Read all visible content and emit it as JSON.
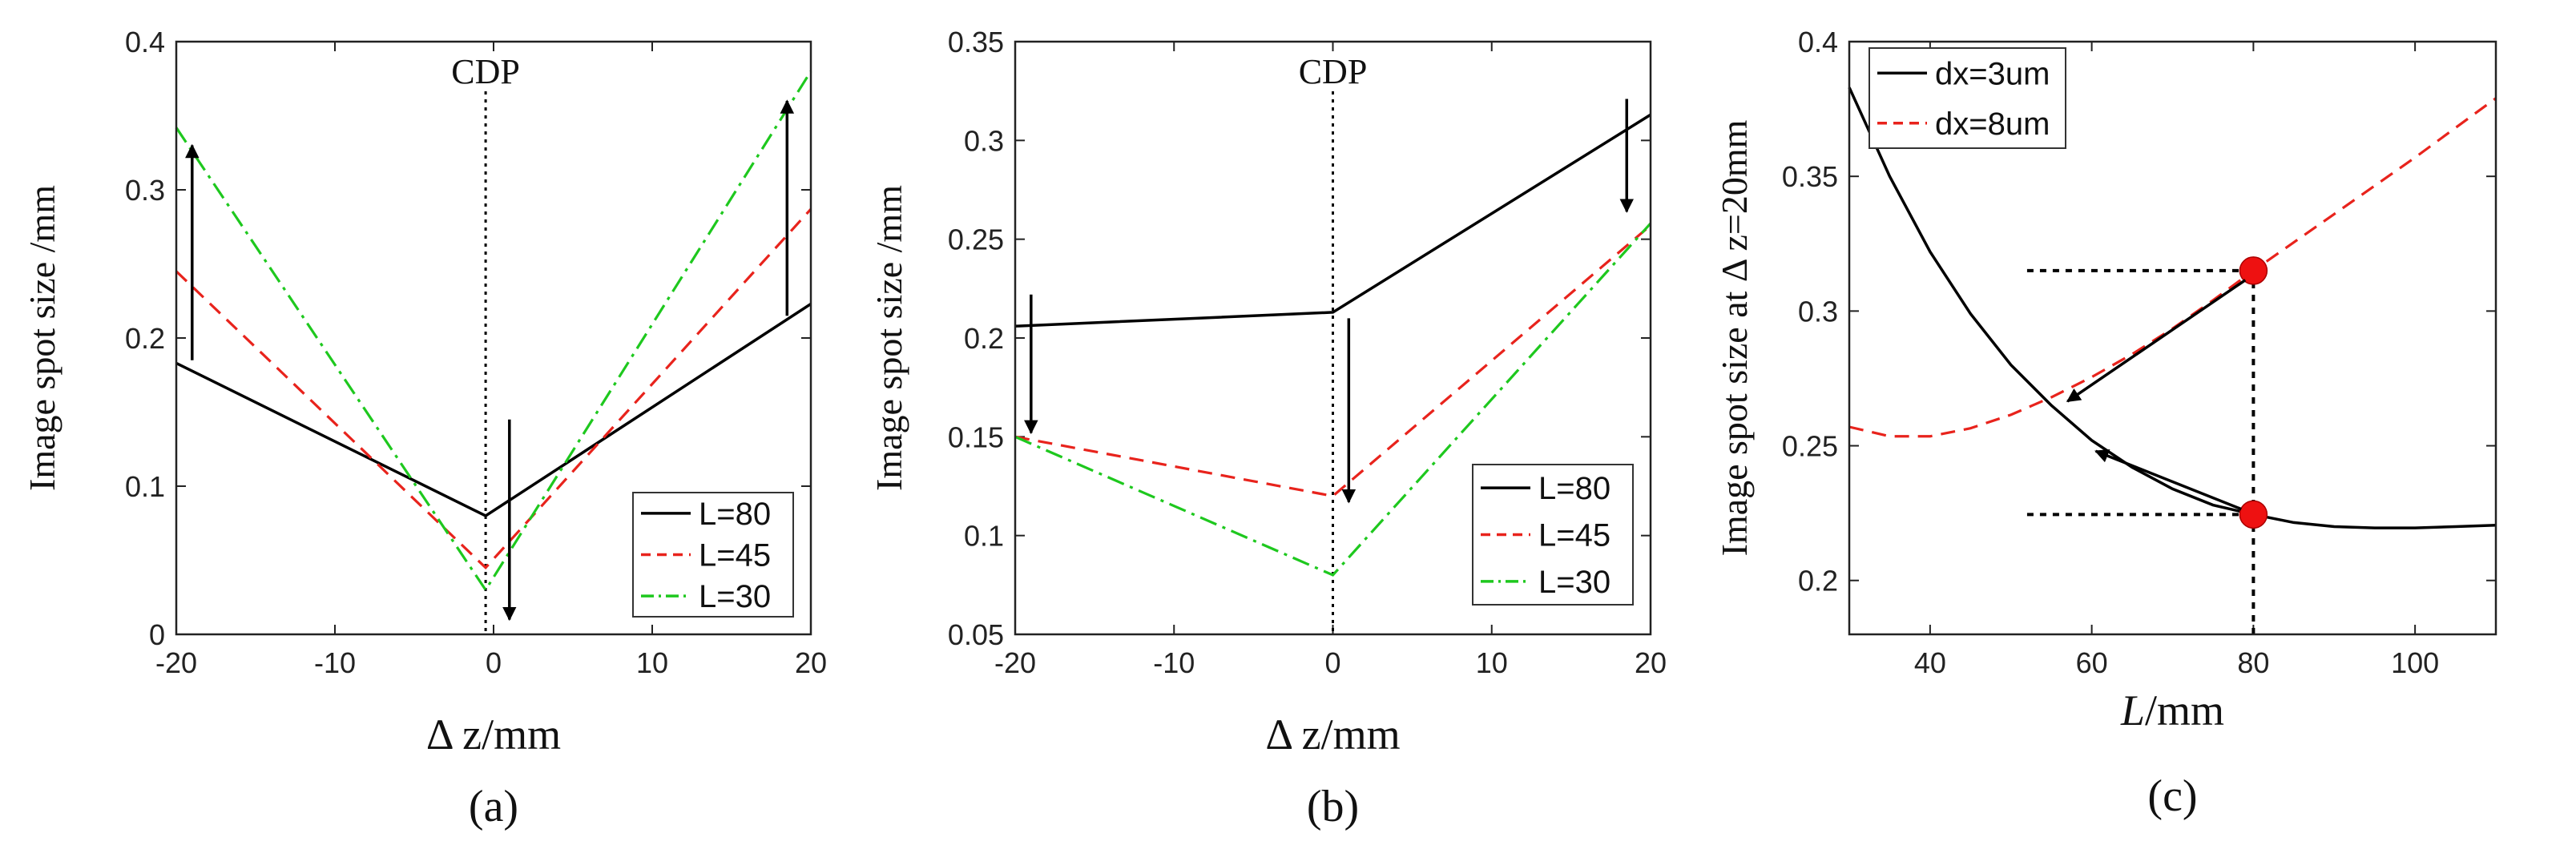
{
  "chart_data": [
    {
      "type": "line",
      "panel_label": "(a)",
      "xlabel": "Δ z/mm",
      "ylabel": "Image spot size /mm",
      "xlim": [
        -20,
        20
      ],
      "ylim": [
        0,
        0.4
      ],
      "xticks": [
        -20,
        -10,
        0,
        10,
        20
      ],
      "xtick_labels": [
        "-20",
        "-10",
        "0",
        "10",
        "20"
      ],
      "yticks": [
        0,
        0.1,
        0.2,
        0.3,
        0.4
      ],
      "ytick_labels": [
        "0",
        "0.1",
        "0.2",
        "0.3",
        "0.4"
      ],
      "annotation": "CDP",
      "cdp_x": -0.5,
      "legend_position": "bottom-right",
      "series": [
        {
          "name": "L=80",
          "color": "#000000",
          "style": "solid",
          "x": [
            -20,
            -0.5,
            20
          ],
          "y": [
            0.183,
            0.08,
            0.223
          ]
        },
        {
          "name": "L=45",
          "color": "#e8231c",
          "style": "dashed",
          "x": [
            -20,
            -0.5,
            20
          ],
          "y": [
            0.245,
            0.045,
            0.287
          ]
        },
        {
          "name": "L=30",
          "color": "#1ec81e",
          "style": "dashdot",
          "x": [
            -20,
            -0.5,
            20
          ],
          "y": [
            0.342,
            0.03,
            0.38
          ]
        }
      ],
      "arrows": [
        {
          "direction": "up",
          "x": -19,
          "y_from": 0.185,
          "y_to": 0.33
        },
        {
          "direction": "up",
          "x": 18.5,
          "y_from": 0.215,
          "y_to": 0.36
        },
        {
          "direction": "down",
          "x": 1,
          "y_from": 0.145,
          "y_to": 0.01
        }
      ]
    },
    {
      "type": "line",
      "panel_label": "(b)",
      "xlabel": "Δ z/mm",
      "ylabel": "Image spot size /mm",
      "xlim": [
        -20,
        20
      ],
      "ylim": [
        0.05,
        0.35
      ],
      "xticks": [
        -20,
        -10,
        0,
        10,
        20
      ],
      "xtick_labels": [
        "-20",
        "-10",
        "0",
        "10",
        "20"
      ],
      "yticks": [
        0.05,
        0.1,
        0.15,
        0.2,
        0.25,
        0.3,
        0.35
      ],
      "ytick_labels": [
        "0.05",
        "0.1",
        "0.15",
        "0.2",
        "0.25",
        "0.3",
        "0.35"
      ],
      "annotation": "CDP",
      "cdp_x": 0,
      "legend_position": "bottom-right",
      "series": [
        {
          "name": "L=80",
          "color": "#000000",
          "style": "solid",
          "x": [
            -20,
            0,
            20
          ],
          "y": [
            0.206,
            0.213,
            0.313
          ]
        },
        {
          "name": "L=45",
          "color": "#e8231c",
          "style": "dashed",
          "x": [
            -20,
            0,
            20
          ],
          "y": [
            0.15,
            0.12,
            0.257
          ]
        },
        {
          "name": "L=30",
          "color": "#1ec81e",
          "style": "dashdot",
          "x": [
            -20,
            0,
            20
          ],
          "y": [
            0.15,
            0.08,
            0.258
          ]
        }
      ],
      "arrows": [
        {
          "direction": "down",
          "x": -19,
          "y_from": 0.222,
          "y_to": 0.152
        },
        {
          "direction": "down",
          "x": 1,
          "y_from": 0.21,
          "y_to": 0.117
        },
        {
          "direction": "down",
          "x": 18.5,
          "y_from": 0.321,
          "y_to": 0.264
        }
      ]
    },
    {
      "type": "line",
      "panel_label": "(c)",
      "xlabel": "L/mm",
      "ylabel": "Image spot size at  Δ z=20mm",
      "xlim": [
        30,
        110
      ],
      "ylim": [
        0.18,
        0.4
      ],
      "xticks": [
        40,
        60,
        80,
        100
      ],
      "xtick_labels": [
        "40",
        "60",
        "80",
        "100"
      ],
      "yticks": [
        0.2,
        0.25,
        0.3,
        0.35,
        0.4
      ],
      "ytick_labels": [
        "0.2",
        "0.25",
        "0.3",
        "0.35",
        "0.4"
      ],
      "legend_position": "top-left",
      "series": [
        {
          "name": "dx=3um",
          "color": "#000000",
          "style": "solid",
          "x": [
            30,
            35,
            40,
            45,
            50,
            55,
            60,
            65,
            70,
            75,
            80,
            85,
            90,
            95,
            100,
            105,
            110
          ],
          "y": [
            0.383,
            0.35,
            0.322,
            0.299,
            0.28,
            0.265,
            0.252,
            0.242,
            0.234,
            0.228,
            0.2245,
            0.2215,
            0.22,
            0.2195,
            0.2195,
            0.22,
            0.2205
          ]
        },
        {
          "name": "dx=8um",
          "color": "#e8231c",
          "style": "dashed",
          "x": [
            30,
            35,
            40,
            45,
            50,
            55,
            60,
            65,
            70,
            75,
            80,
            85,
            90,
            95,
            100,
            105,
            110
          ],
          "y": [
            0.257,
            0.2535,
            0.2535,
            0.2565,
            0.2615,
            0.268,
            0.2755,
            0.284,
            0.2935,
            0.304,
            0.315,
            0.3255,
            0.336,
            0.3465,
            0.357,
            0.368,
            0.379
          ]
        }
      ],
      "markers": [
        {
          "x": 80,
          "y": 0.315,
          "color": "#ee1111"
        },
        {
          "x": 80,
          "y": 0.2245,
          "color": "#ee1111"
        }
      ],
      "guides": [
        {
          "orientation": "h",
          "x_from": 52,
          "x_to": 80,
          "y": 0.315
        },
        {
          "orientation": "h",
          "x_from": 52,
          "x_to": 80,
          "y": 0.2245
        },
        {
          "orientation": "v",
          "x": 80,
          "y_from": 0.18,
          "y_to": 0.315
        }
      ],
      "arrows": [
        {
          "x_from": 79,
          "y_from": 0.3115,
          "x_to": 57,
          "y_to": 0.2665
        },
        {
          "x_from": 78.5,
          "y_from": 0.2265,
          "x_to": 60.5,
          "y_to": 0.248
        }
      ]
    }
  ]
}
